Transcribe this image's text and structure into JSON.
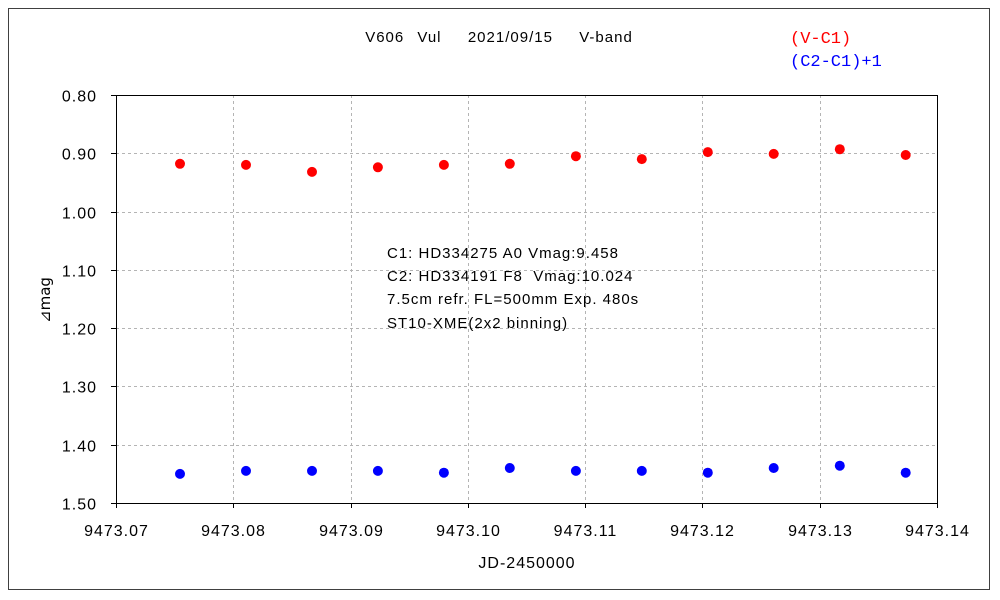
{
  "chart_data": {
    "type": "scatter",
    "title": "V606 Vul  2021/09/15  V-band",
    "xlabel": "JD-2450000",
    "ylabel": "⊿mag",
    "xlim": [
      9473.07,
      9473.14
    ],
    "ylim": [
      0.8,
      1.5
    ],
    "y_inverted": true,
    "x_ticks": [
      "9473.07",
      "9473.08",
      "9473.09",
      "9473.10",
      "9473.11",
      "9473.12",
      "9473.13",
      "9473.14"
    ],
    "y_ticks": [
      "0.80",
      "0.90",
      "1.00",
      "1.10",
      "1.20",
      "1.30",
      "1.40",
      "1.50"
    ],
    "grid": true,
    "legend_position": "top-right",
    "x": [
      9473.07546,
      9473.08108,
      9473.08671,
      9473.09233,
      9473.09796,
      9473.10358,
      9473.10921,
      9473.11483,
      9473.12046,
      9473.12608,
      9473.13171,
      9473.13733
    ],
    "series": [
      {
        "name": "(V-C1)",
        "color": "#ff0000",
        "values": [
          0.918,
          0.92,
          0.932,
          0.924,
          0.92,
          0.918,
          0.905,
          0.91,
          0.898,
          0.901,
          0.893,
          0.903
        ]
      },
      {
        "name": "(C2-C1)+1",
        "color": "#0000ff",
        "values": [
          1.45,
          1.445,
          1.445,
          1.445,
          1.448,
          1.44,
          1.445,
          1.445,
          1.448,
          1.44,
          1.436,
          1.448
        ]
      }
    ],
    "annotations": [
      "C1: HD334275 A0 Vmag:9.458",
      "C2: HD334191 F8  Vmag:10.024",
      "7.5cm refr. FL=500mm Exp. 480s",
      "ST10-XME(2x2 binning)"
    ]
  }
}
